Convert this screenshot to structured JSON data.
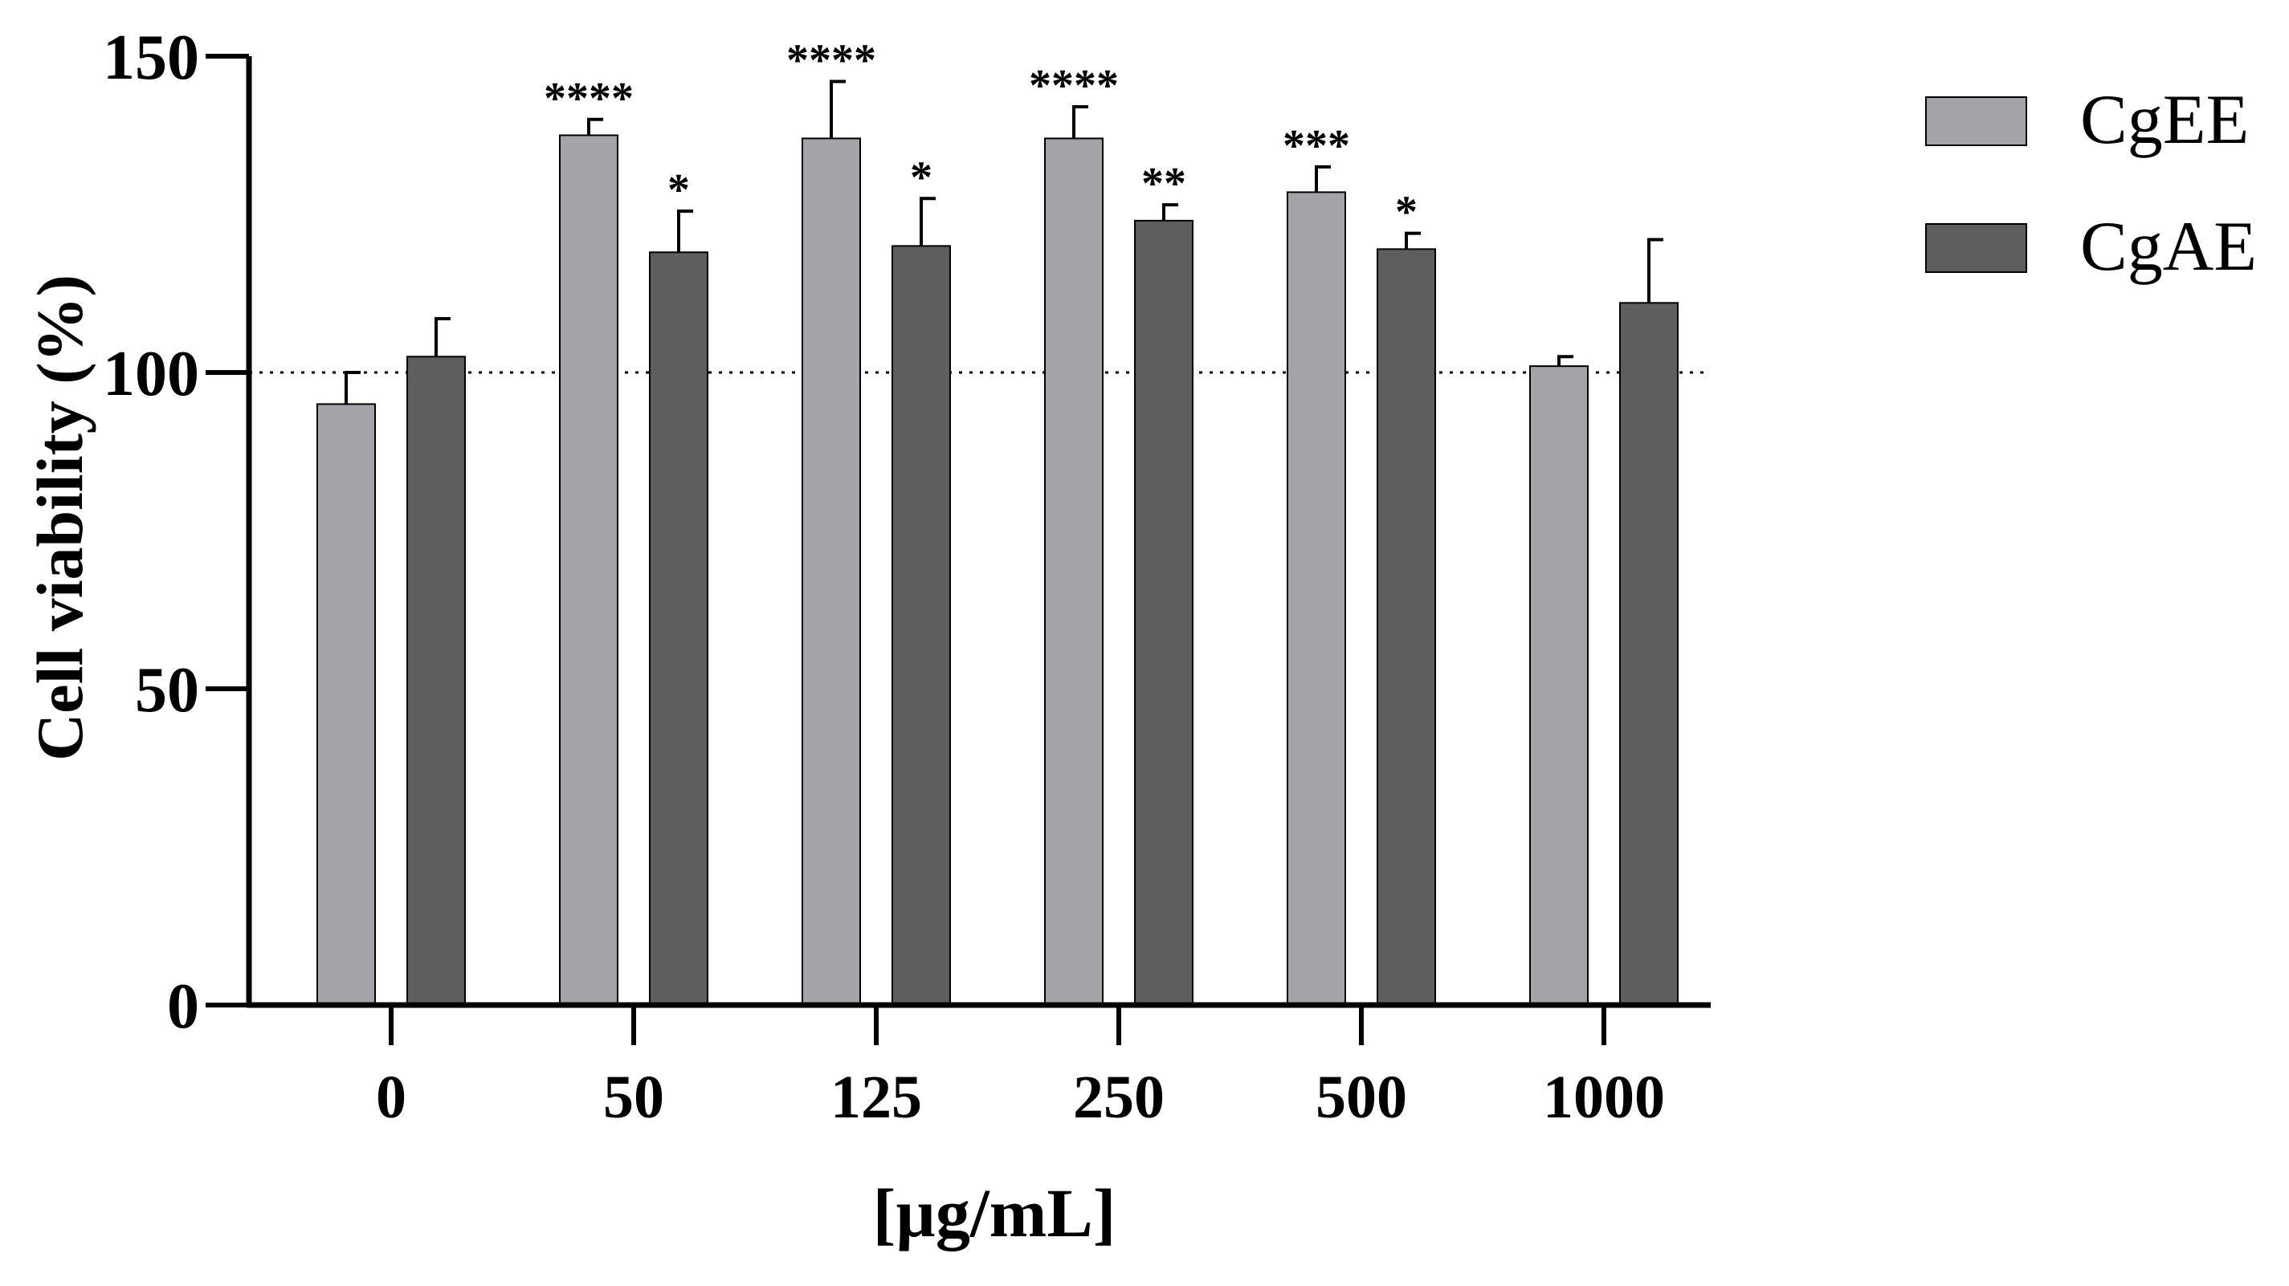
{
  "chart_data": {
    "type": "bar",
    "title": "",
    "xlabel": "[µg/mL]",
    "ylabel": "Cell viability (%)",
    "ylim": [
      0,
      150
    ],
    "yticks": [
      0,
      50,
      100,
      150
    ],
    "categories": [
      "0",
      "50",
      "125",
      "250",
      "500",
      "1000"
    ],
    "reference_line": {
      "value": 100,
      "style": "dotted"
    },
    "legend_position": "top-right",
    "series": [
      {
        "name": "CgEE",
        "color": "#a3a4a7",
        "values": [
          95,
          137.5,
          137,
          137,
          128.5,
          101
        ],
        "errors": [
          5,
          2.5,
          9,
          5,
          4,
          1.5
        ],
        "significance": [
          "",
          "****",
          "****",
          "****",
          "***",
          ""
        ]
      },
      {
        "name": "CgAE",
        "color": "#5e5e5e",
        "values": [
          102.5,
          119,
          120,
          124,
          119.5,
          111
        ],
        "errors": [
          6,
          6.5,
          7.5,
          2.5,
          2.5,
          10
        ],
        "significance": [
          "",
          "*",
          "*",
          "**",
          "*",
          ""
        ]
      }
    ]
  }
}
